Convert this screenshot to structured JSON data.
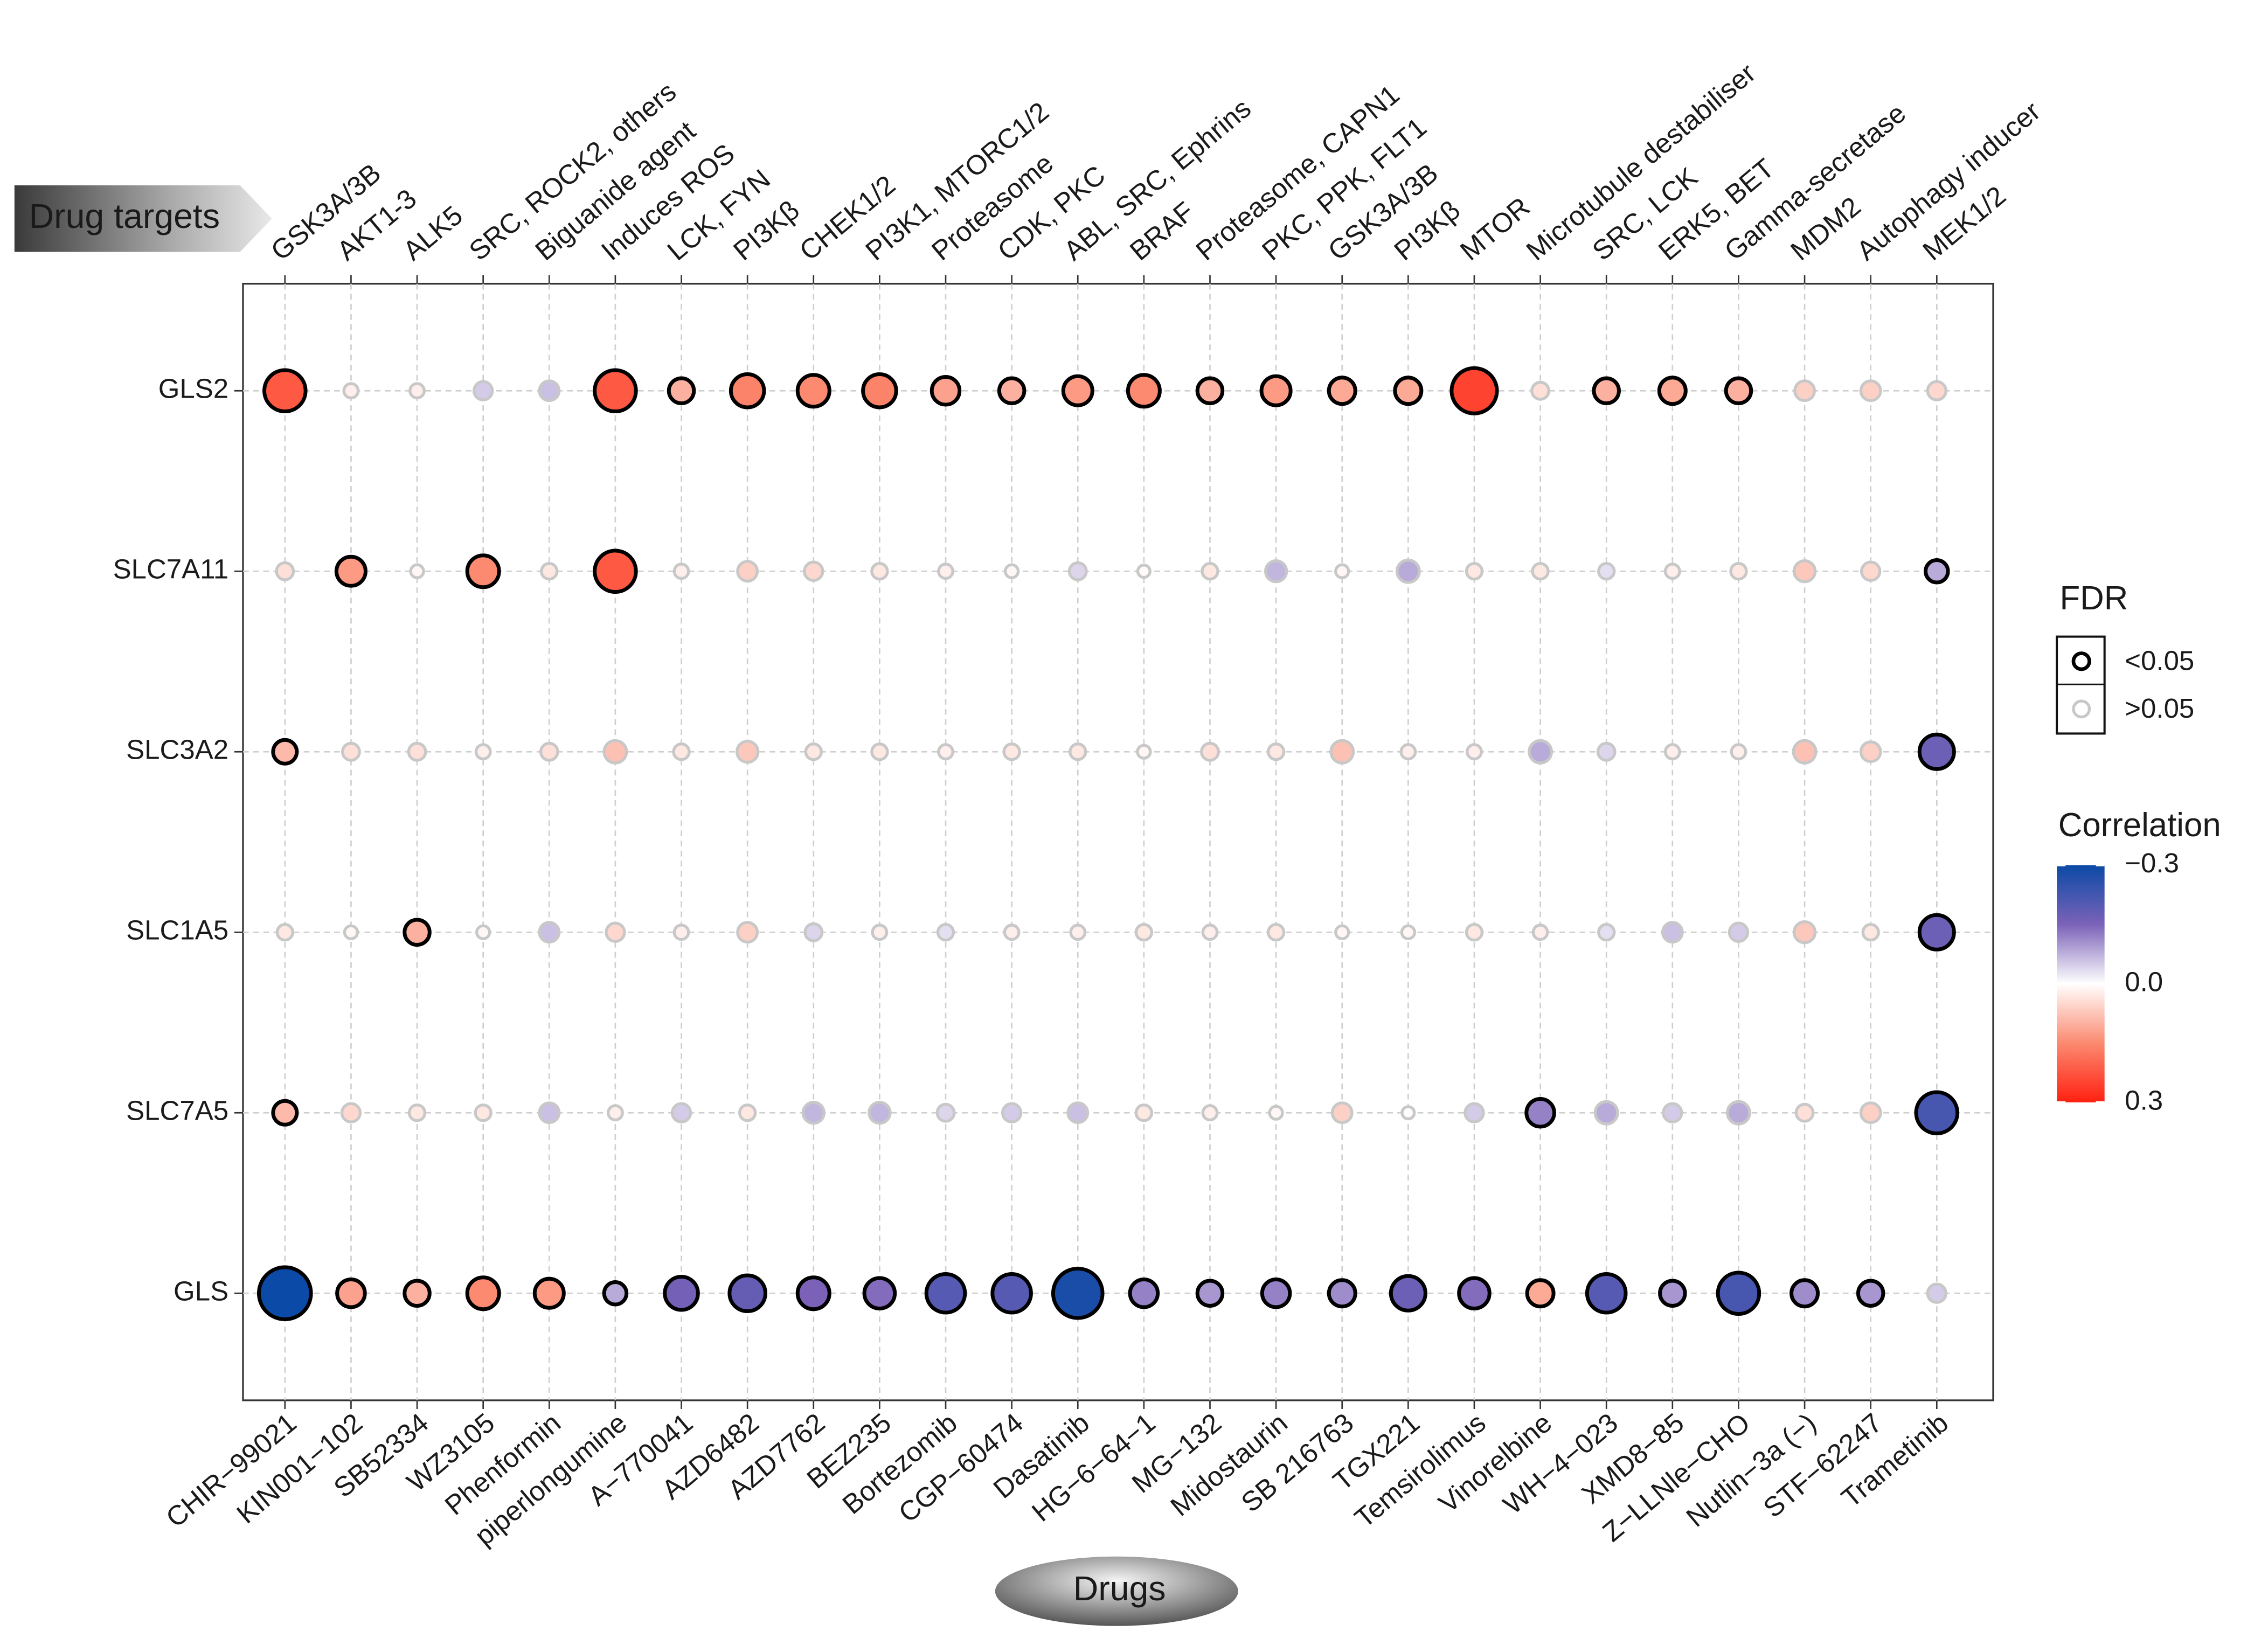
{
  "chart_data": {
    "type": "bubble",
    "x_title": "Drugs",
    "targets_title": "Drug targets",
    "categories": [
      "CHIR−99021",
      "KIN001−102",
      "SB52334",
      "WZ3105",
      "Phenformin",
      "piperlongumine",
      "A−770041",
      "AZD6482",
      "AZD7762",
      "BEZ235",
      "Bortezomib",
      "CGP−60474",
      "Dasatinib",
      "HG−6−64−1",
      "MG−132",
      "Midostaurin",
      "SB 216763",
      "TGX221",
      "Temsirolimus",
      "Vinorelbine",
      "WH−4−023",
      "XMD8−85",
      "Z−LLNle−CHO",
      "Nutlin−3a (−)",
      "STF−62247",
      "Trametinib"
    ],
    "targets": [
      "GSK3A/3B",
      "AKT1-3",
      "ALK5",
      "SRC, ROCK2, others",
      "Biguanide agent",
      "Induces ROS",
      "LCK, FYN",
      "PI3Kβ",
      "CHEK1/2",
      "PI3K1, MTORC1/2",
      "Proteasome",
      "CDK, PKC",
      "ABL, SRC, Ephrins",
      "BRAF",
      "Proteasome, CAPN1",
      "PKC, PPK, FLT1",
      "GSK3A/3B",
      "PI3Kβ",
      "MTOR",
      "Microtubule destabiliser",
      "SRC, LCK",
      "ERK5, BET",
      "Gamma-secretase",
      "MDM2",
      "Autophagy inducer",
      "MEK1/2"
    ],
    "series": [
      {
        "name": "GLS2",
        "values": [
          0.22,
          0.02,
          0.02,
          -0.05,
          -0.06,
          0.22,
          0.1,
          0.16,
          0.15,
          0.16,
          0.12,
          0.1,
          0.13,
          0.15,
          0.1,
          0.13,
          0.11,
          0.11,
          0.25,
          0.04,
          0.1,
          0.11,
          0.1,
          0.06,
          0.06,
          0.05
        ],
        "significant": [
          true,
          false,
          false,
          false,
          false,
          true,
          true,
          true,
          true,
          true,
          true,
          true,
          true,
          true,
          true,
          true,
          true,
          true,
          true,
          false,
          true,
          true,
          true,
          false,
          false,
          false
        ]
      },
      {
        "name": "SLC7A11",
        "values": [
          0.04,
          0.13,
          0.01,
          0.15,
          0.03,
          0.22,
          0.02,
          0.06,
          0.05,
          0.03,
          0.02,
          0.01,
          -0.04,
          0.005,
          0.03,
          -0.07,
          0.01,
          -0.08,
          0.03,
          0.03,
          -0.03,
          0.02,
          0.03,
          0.07,
          0.05,
          -0.08
        ],
        "significant": [
          false,
          true,
          false,
          true,
          false,
          true,
          false,
          false,
          false,
          false,
          false,
          false,
          false,
          false,
          false,
          false,
          false,
          false,
          false,
          false,
          false,
          false,
          false,
          false,
          false,
          true
        ]
      },
      {
        "name": "SLC3A2",
        "values": [
          0.09,
          0.04,
          0.04,
          0.02,
          0.04,
          0.08,
          0.03,
          0.07,
          0.03,
          0.03,
          0.02,
          0.03,
          0.03,
          0.01,
          0.04,
          0.03,
          0.08,
          0.02,
          0.02,
          -0.08,
          -0.04,
          0.02,
          0.02,
          0.08,
          0.06,
          -0.17
        ],
        "significant": [
          true,
          false,
          false,
          false,
          false,
          false,
          false,
          false,
          false,
          false,
          false,
          false,
          false,
          false,
          false,
          false,
          false,
          false,
          false,
          false,
          false,
          false,
          false,
          false,
          false,
          true
        ]
      },
      {
        "name": "SLC1A5",
        "values": [
          0.03,
          0.01,
          0.1,
          0.01,
          -0.06,
          0.05,
          0.02,
          0.06,
          -0.04,
          0.02,
          -0.03,
          0.02,
          0.02,
          0.03,
          0.02,
          0.03,
          0.01,
          0.01,
          0.03,
          0.02,
          -0.03,
          -0.06,
          -0.05,
          0.07,
          0.03,
          -0.17
        ],
        "significant": [
          false,
          false,
          true,
          false,
          false,
          false,
          false,
          false,
          false,
          false,
          false,
          false,
          false,
          false,
          false,
          false,
          false,
          false,
          false,
          false,
          false,
          false,
          false,
          false,
          false,
          true
        ]
      },
      {
        "name": "SLC7A5",
        "values": [
          0.09,
          0.05,
          0.03,
          0.03,
          -0.06,
          0.02,
          -0.05,
          0.03,
          -0.07,
          -0.07,
          -0.04,
          -0.05,
          -0.06,
          0.03,
          0.02,
          0.01,
          0.06,
          0.005,
          -0.05,
          -0.12,
          -0.08,
          -0.05,
          -0.08,
          0.04,
          0.06,
          -0.22
        ],
        "significant": [
          true,
          false,
          false,
          false,
          false,
          false,
          false,
          false,
          false,
          false,
          false,
          false,
          false,
          false,
          false,
          false,
          false,
          false,
          false,
          true,
          false,
          false,
          false,
          false,
          false,
          true
        ]
      },
      {
        "name": "GLS",
        "values": [
          -0.3,
          0.12,
          0.1,
          0.15,
          0.13,
          -0.08,
          -0.16,
          -0.18,
          -0.15,
          -0.14,
          -0.2,
          -0.2,
          -0.28,
          -0.12,
          -0.1,
          -0.12,
          -0.11,
          -0.17,
          -0.14,
          0.11,
          -0.2,
          -0.1,
          -0.22,
          -0.11,
          -0.1,
          -0.05
        ],
        "significant": [
          true,
          true,
          true,
          true,
          true,
          true,
          true,
          true,
          true,
          true,
          true,
          true,
          true,
          true,
          true,
          true,
          true,
          true,
          true,
          true,
          true,
          true,
          true,
          true,
          true,
          false
        ]
      }
    ],
    "colorbar_title": "Correlation",
    "clim": [
      -0.3,
      0.3
    ],
    "cticks": [
      {
        "value": -0.3,
        "label": "−0.3"
      },
      {
        "value": 0,
        "label": "0.0"
      },
      0.3
    ],
    "colors": [
      "#0b4aa6",
      "#7b62b8",
      "#ffffff",
      "#fb8a70",
      "#ff2010"
    ],
    "fdr_legend": {
      "title": "FDR",
      "labels": [
        "<0.05",
        ">0.05"
      ]
    },
    "grid": true
  }
}
